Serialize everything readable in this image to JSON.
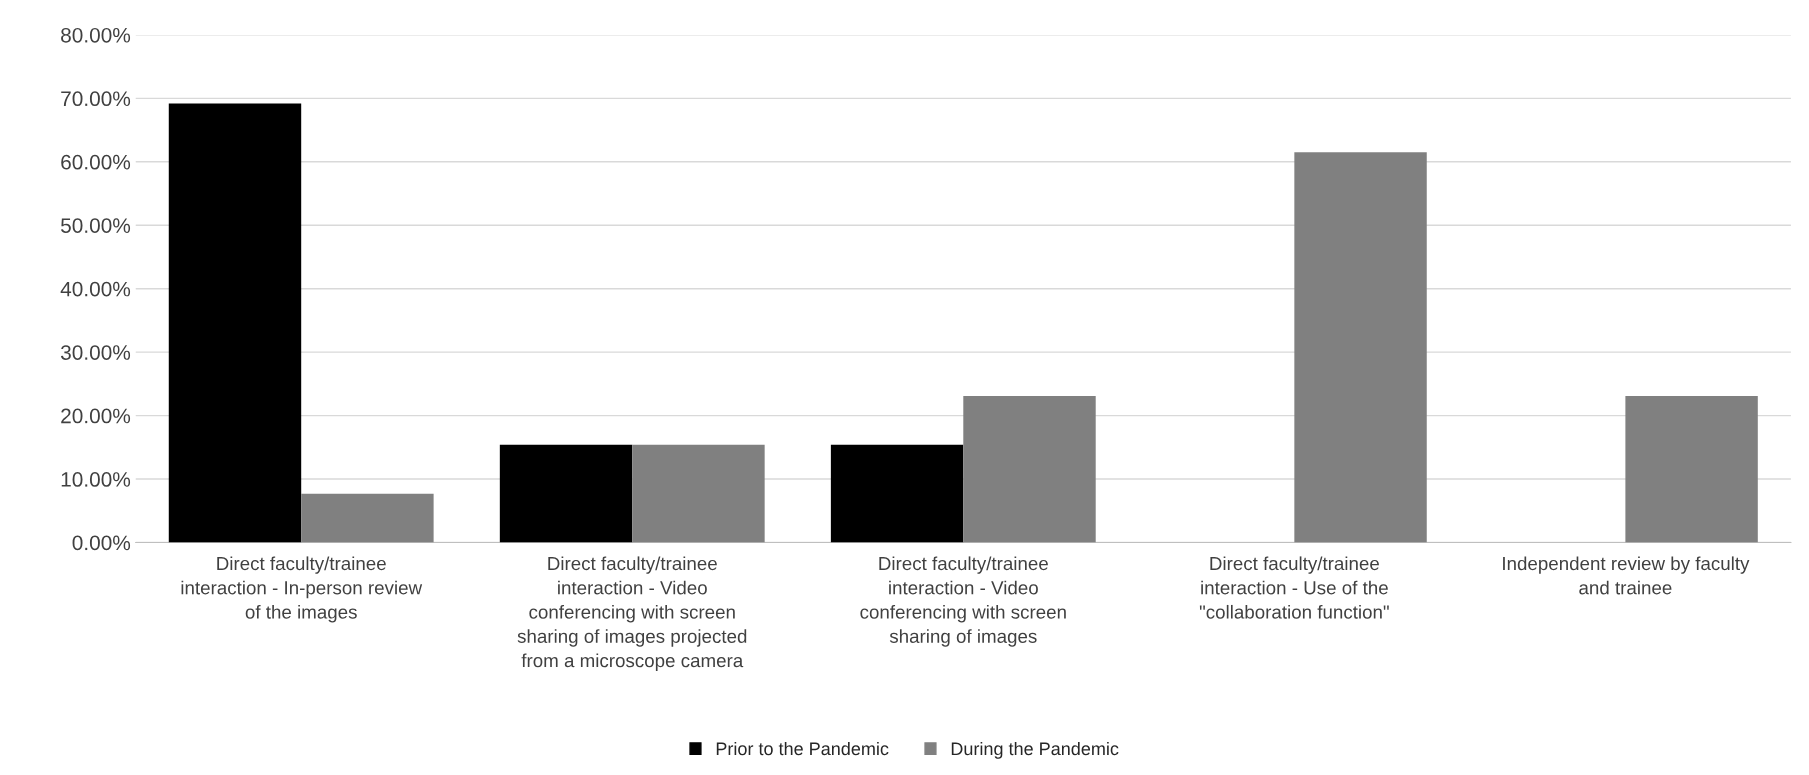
{
  "chart_data": {
    "type": "bar",
    "categories": [
      "Direct faculty/trainee\ninteraction - In-person review\nof the images",
      "Direct faculty/trainee\ninteraction - Video\nconferencing with screen\nsharing of images projected\nfrom a microscope camera",
      "Direct faculty/trainee\ninteraction - Video\nconferencing with screen\nsharing of images",
      "Direct faculty/trainee\ninteraction - Use of the\n\"collaboration function\"",
      "Independent review by faculty\nand trainee"
    ],
    "series": [
      {
        "name": "Prior to the Pandemic",
        "color": "#000000",
        "values": [
          69.2,
          15.4,
          15.4,
          0,
          0
        ]
      },
      {
        "name": "During the Pandemic",
        "color": "#808080",
        "values": [
          7.7,
          15.4,
          23.1,
          61.5,
          23.1
        ]
      }
    ],
    "ylim": [
      0,
      80
    ],
    "yticks": [
      {
        "value": 0,
        "label": "0.00%"
      },
      {
        "value": 10,
        "label": "10.00%"
      },
      {
        "value": 20,
        "label": "20.00%"
      },
      {
        "value": 30,
        "label": "30.00%"
      },
      {
        "value": 40,
        "label": "40.00%"
      },
      {
        "value": 50,
        "label": "50.00%"
      },
      {
        "value": 60,
        "label": "60.00%"
      },
      {
        "value": 70,
        "label": "70.00%"
      },
      {
        "value": 80,
        "label": "80.00%"
      }
    ],
    "grid": "y",
    "legend": "bottom"
  }
}
